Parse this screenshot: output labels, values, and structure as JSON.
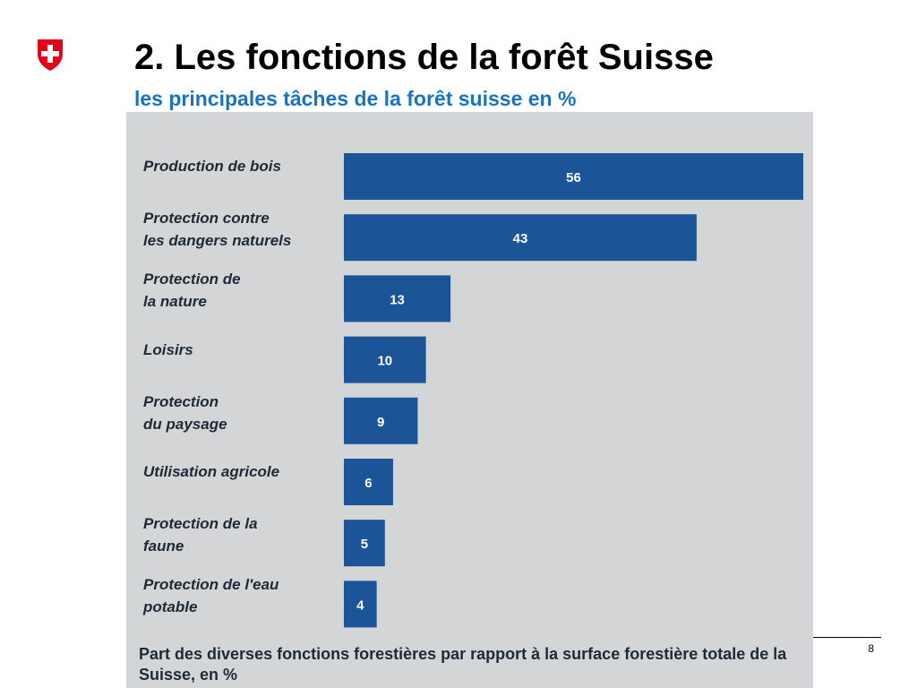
{
  "slide": {
    "title": "2. Les fonctions de la forêt Suisse",
    "subtitle": "les principales tâches de la forêt suisse en %",
    "page_number": "8",
    "logo_icon": "swiss-cross-shield-icon",
    "colors": {
      "logo_red": "#e3001b",
      "subtitle_blue": "#1a73c0"
    }
  },
  "chart_data": {
    "type": "bar",
    "orientation": "horizontal",
    "categories": [
      "Production de bois",
      "Protection contre\nles dangers naturels",
      "Protection de\nla nature",
      "Loisirs",
      "Protection\ndu paysage",
      "Utilisation agricole",
      "Protection de la\nfaune",
      "Protection de l'eau\npotable"
    ],
    "values": [
      56,
      43,
      13,
      10,
      9,
      6,
      5,
      4
    ],
    "data_labels": [
      "56",
      "43",
      "13",
      "10",
      "9",
      "6",
      "5",
      "4"
    ],
    "caption": "Part des diverses fonctions forestières par rapport à la surface forestière totale de la Suisse, en %",
    "xlim": [
      0,
      56
    ],
    "grid": false,
    "legend": "none",
    "colors": {
      "bar": "#1c5597",
      "background": "#d4d5d7",
      "label_text": "#1e2a35",
      "data_label": "#ffffff"
    }
  }
}
